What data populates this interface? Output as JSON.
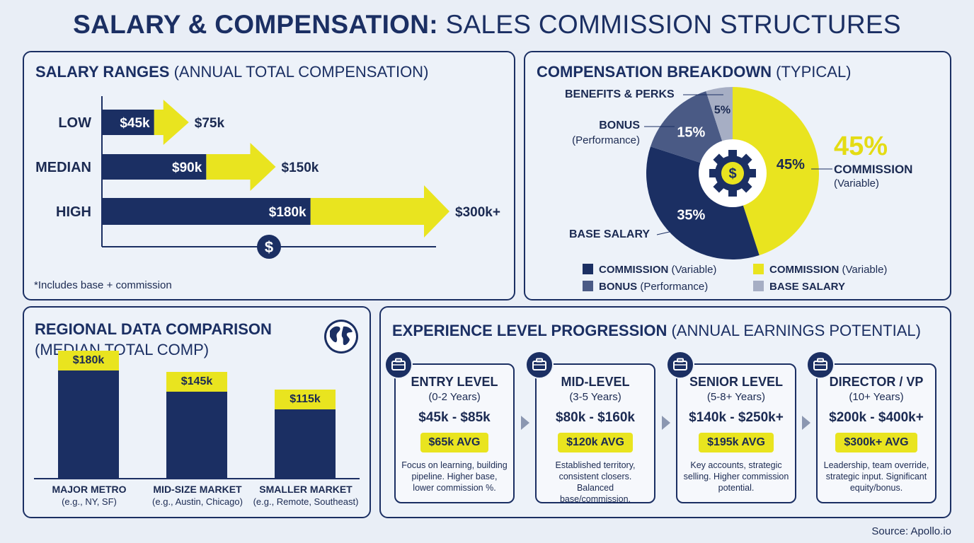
{
  "title": {
    "bold": "SALARY & COMPENSATION:",
    "light": "SALES COMMISSION STRUCTURES"
  },
  "salary_panel": {
    "title_bold": "SALARY RANGES",
    "title_light": "(ANNUAL TOTAL COMPENSATION)",
    "footnote": "*Includes base + commission",
    "dollar_icon": "dollar-icon"
  },
  "breakdown_panel": {
    "title_bold": "COMPENSATION BREAKDOWN",
    "title_light": "(TYPICAL)",
    "callouts": {
      "benefits": "BENEFITS & PERKS",
      "bonus": "BONUS",
      "bonus_sub": "(Performance)",
      "commission": "COMMISSION",
      "commission_sub": "(Variable)",
      "commission_big": "45%",
      "base": "BASE SALARY"
    },
    "legend": [
      {
        "bold": "COMMISSION",
        "light": "(Variable)",
        "color": "#1b2f63"
      },
      {
        "bold": "COMMISSION",
        "light": "(Variable)",
        "color": "#e9e41f"
      },
      {
        "bold": "BONUS",
        "light": "(Performance)",
        "color": "#4a5a85"
      },
      {
        "bold": "BASE SALARY",
        "light": "",
        "color": "#a6aec4"
      }
    ]
  },
  "regional_panel": {
    "title_line1": "REGIONAL DATA COMPARISON",
    "title_line2": "(MEDIAN TOTAL COMP)",
    "globe_icon": "globe-icon"
  },
  "experience_panel": {
    "title_bold": "EXPERIENCE LEVEL PROGRESSION",
    "title_light": "(ANNUAL EARNINGS POTENTIAL)",
    "levels": [
      {
        "name": "ENTRY LEVEL",
        "years": "(0-2 Years)",
        "range": "$45k - $85k",
        "avg": "$65k AVG",
        "desc": "Focus on learning, building pipeline. Higher base, lower commission %."
      },
      {
        "name": "MID-LEVEL",
        "years": "(3-5 Years)",
        "range": "$80k - $160k",
        "avg": "$120k AVG",
        "desc": "Established territory, consistent closers. Balanced base/commission."
      },
      {
        "name": "SENIOR LEVEL",
        "years": "(5-8+ Years)",
        "range": "$140k - $250k+",
        "avg": "$195k AVG",
        "desc": "Key accounts, strategic selling. Higher commission potential."
      },
      {
        "name": "DIRECTOR / VP",
        "years": "(10+ Years)",
        "range": "$200k - $400k+",
        "avg": "$300k+ AVG",
        "desc": "Leadership, team override, strategic input. Significant equity/bonus."
      }
    ]
  },
  "source": "Source: Apollo.io",
  "colors": {
    "navy": "#1b2f63",
    "yellow": "#e9e41f",
    "mid_blue": "#4a5a85",
    "grey": "#a6aec4"
  },
  "chart_data": [
    {
      "type": "bar",
      "title": "SALARY RANGES (ANNUAL TOTAL COMPENSATION)",
      "orientation": "horizontal",
      "categories": [
        "LOW",
        "MEDIAN",
        "HIGH"
      ],
      "series": [
        {
          "values": [
            45,
            90,
            180
          ],
          "labels": [
            "$45k",
            "$90k",
            "$180k"
          ]
        },
        {
          "values": [
            75,
            150,
            300
          ],
          "labels": [
            "$75k",
            "$150k",
            "$300k+"
          ]
        }
      ],
      "xlim": [
        0,
        300
      ]
    },
    {
      "type": "pie",
      "title": "COMPENSATION BREAKDOWN (TYPICAL)",
      "slices": [
        {
          "label": "COMMISSION",
          "value": 45,
          "text": "45%",
          "color": "#e9e41f"
        },
        {
          "label": "BASE SALARY",
          "value": 35,
          "text": "35%",
          "color": "#1b2f63"
        },
        {
          "label": "BONUS",
          "value": 15,
          "text": "15%",
          "color": "#4a5a85"
        },
        {
          "label": "BENEFITS & PERKS",
          "value": 5,
          "text": "5%",
          "color": "#a6aec4"
        }
      ]
    },
    {
      "type": "bar",
      "title": "REGIONAL DATA COMPARISON (MEDIAN TOTAL COMP)",
      "categories": [
        "MAJOR METRO",
        "MID-SIZE MARKET",
        "SMALLER MARKET"
      ],
      "category_notes": [
        "(e.g., NY, SF)",
        "(e.g., Austin, Chicago)",
        "(e.g., Remote, Southeast)"
      ],
      "values": [
        180,
        145,
        115
      ],
      "value_labels": [
        "$180k",
        "$145k",
        "$115k"
      ],
      "ylim": [
        0,
        180
      ]
    }
  ]
}
